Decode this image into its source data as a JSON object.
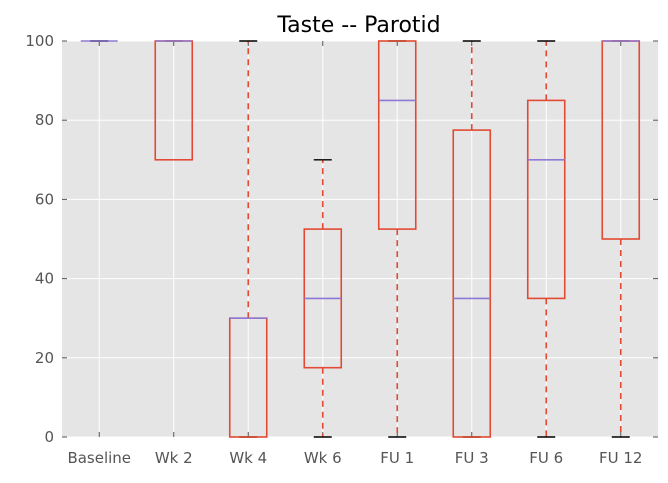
{
  "chart_data": {
    "type": "box",
    "title": "Taste -- Parotid",
    "xlabel": "",
    "ylabel": "",
    "ylim": [
      0,
      100
    ],
    "yticks": [
      0,
      20,
      40,
      60,
      80,
      100
    ],
    "grid": true,
    "categories": [
      "Baseline",
      "Wk 2",
      "Wk 4",
      "Wk 6",
      "FU 1",
      "FU 3",
      "FU 6",
      "FU 12"
    ],
    "boxes": [
      {
        "label": "Baseline",
        "whisker_low": 100,
        "q1": 100,
        "median": 100,
        "q3": 100,
        "whisker_high": 100
      },
      {
        "label": "Wk 2",
        "whisker_low": 70,
        "q1": 70,
        "median": 100,
        "q3": 100,
        "whisker_high": 100
      },
      {
        "label": "Wk 4",
        "whisker_low": 0,
        "q1": 0,
        "median": 30,
        "q3": 30,
        "whisker_high": 100
      },
      {
        "label": "Wk 6",
        "whisker_low": 0,
        "q1": 17.5,
        "median": 35,
        "q3": 52.5,
        "whisker_high": 70
      },
      {
        "label": "FU 1",
        "whisker_low": 0,
        "q1": 52.5,
        "median": 85,
        "q3": 100,
        "whisker_high": 100
      },
      {
        "label": "FU 3",
        "whisker_low": 0,
        "q1": 0,
        "median": 35,
        "q3": 77.5,
        "whisker_high": 100
      },
      {
        "label": "FU 6",
        "whisker_low": 0,
        "q1": 35,
        "median": 70,
        "q3": 85,
        "whisker_high": 100
      },
      {
        "label": "FU 12",
        "whisker_low": 0,
        "q1": 50,
        "median": 100,
        "q3": 100,
        "whisker_high": 100
      }
    ],
    "colors": {
      "box": "#e24a33",
      "whisker": "#e24a33",
      "median": "#8e7ad4",
      "cap": "#000000",
      "background": "#e5e5e5",
      "grid": "#ffffff"
    }
  }
}
